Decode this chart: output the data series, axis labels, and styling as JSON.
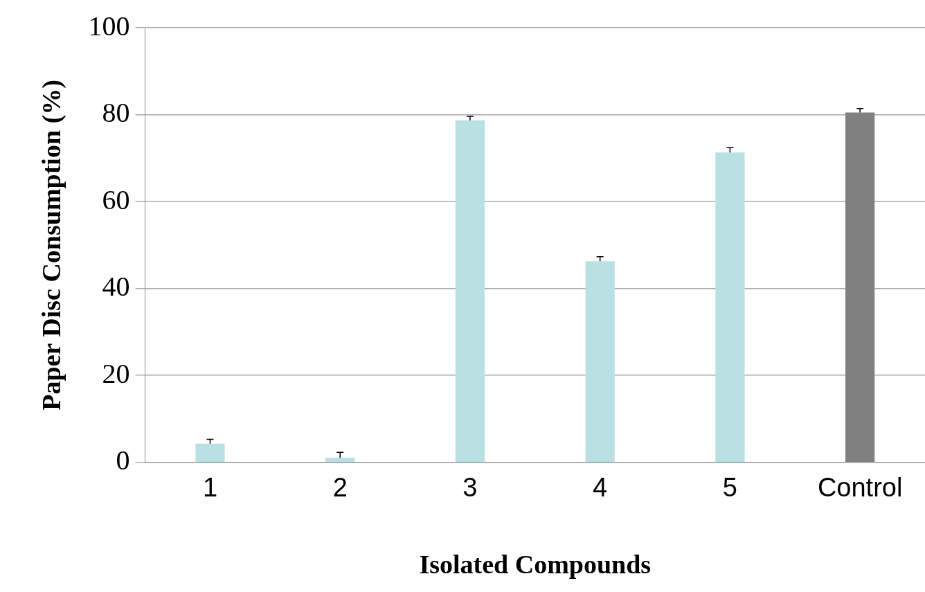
{
  "chart_data": {
    "type": "bar",
    "xlabel": "Isolated Compounds",
    "ylabel": "Paper Disc Consumption (%)",
    "categories": [
      "1",
      "2",
      "3",
      "4",
      "5",
      "Control"
    ],
    "values": [
      4.3,
      1.1,
      78.7,
      46.3,
      71.3,
      80.5
    ],
    "colors": [
      "#b9e0e3",
      "#b9e0e3",
      "#b9e0e3",
      "#b9e0e3",
      "#b9e0e3",
      "#808080"
    ],
    "errors": [
      [
        4.3,
        5.3
      ],
      [
        1.1,
        2.3
      ],
      [
        78.7,
        79.6
      ],
      [
        46.3,
        47.3
      ],
      [
        71.3,
        72.4
      ],
      [
        80.5,
        81.4
      ]
    ],
    "ylim": [
      0,
      100
    ],
    "yticks": [
      0,
      20,
      40,
      60,
      80,
      100
    ],
    "grid": "y",
    "legend": false
  }
}
